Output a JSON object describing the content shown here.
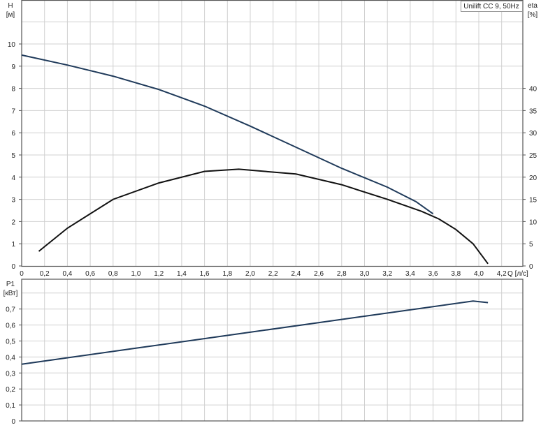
{
  "chart_data": [
    {
      "type": "line",
      "title_box": "Unilift CC 9, 50Hz",
      "xlabel": "Q [л/с]",
      "ylabel_left": "H\n[м]",
      "ylabel_right": "eta\n[%]",
      "xlim": [
        0,
        4.4
      ],
      "ylim_left": [
        0,
        11.9
      ],
      "ylim_right": [
        0,
        59.5
      ],
      "x_ticks": [
        "0",
        "0,2",
        "0,4",
        "0,6",
        "0,8",
        "1,0",
        "1,2",
        "1,4",
        "1,6",
        "1,8",
        "2,0",
        "2,2",
        "2,4",
        "2,6",
        "2,8",
        "3,0",
        "3,2",
        "3,4",
        "3,6",
        "3,8",
        "4,0",
        "4,2"
      ],
      "y_ticks_left": [
        "0",
        "1",
        "2",
        "3",
        "4",
        "5",
        "6",
        "7",
        "8",
        "9",
        "10"
      ],
      "y_ticks_right": [
        "0",
        "5",
        "10",
        "15",
        "20",
        "25",
        "30",
        "35",
        "40"
      ],
      "grid": true,
      "series": [
        {
          "name": "H",
          "axis": "left",
          "color": "#1f3a5a",
          "x": [
            0,
            0.4,
            0.8,
            1.2,
            1.6,
            2.0,
            2.4,
            2.8,
            3.2,
            3.45,
            3.6
          ],
          "y": [
            9.5,
            9.05,
            8.55,
            7.95,
            7.2,
            6.3,
            5.35,
            4.4,
            3.55,
            2.9,
            2.35
          ]
        },
        {
          "name": "eta",
          "axis": "right",
          "color": "#111111",
          "x": [
            0.15,
            0.4,
            0.8,
            1.2,
            1.6,
            1.9,
            2.4,
            2.8,
            3.2,
            3.5,
            3.65,
            3.8,
            3.95,
            4.08
          ],
          "y": [
            3.3,
            8.5,
            15,
            18.7,
            21.3,
            21.8,
            20.7,
            18.3,
            15,
            12.3,
            10.6,
            8.2,
            5,
            0.5
          ]
        }
      ]
    },
    {
      "type": "line",
      "ylabel_left": "P1\n[кВт]",
      "xlim": [
        0,
        4.4
      ],
      "ylim": [
        0,
        0.86
      ],
      "y_ticks": [
        "0",
        "0,1",
        "0,2",
        "0,3",
        "0,4",
        "0,5",
        "0,6",
        "0,7"
      ],
      "grid": true,
      "series": [
        {
          "name": "P1",
          "color": "#1f3a5a",
          "x": [
            0,
            1.0,
            2.0,
            3.0,
            3.95,
            4.08
          ],
          "y": [
            0.355,
            0.455,
            0.555,
            0.655,
            0.75,
            0.74
          ]
        }
      ]
    }
  ]
}
